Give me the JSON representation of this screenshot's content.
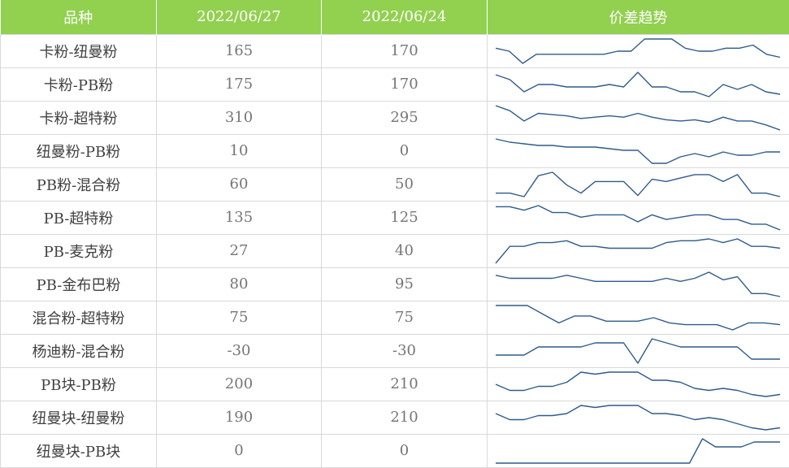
{
  "header": {
    "col_name": "品种",
    "col_date1": "2022/06/27",
    "col_date2": "2022/06/24",
    "col_trend": "价差趋势"
  },
  "rows": [
    {
      "name": "卡粉-纽曼粉",
      "v1": "165",
      "v2": "170"
    },
    {
      "name": "卡粉-PB粉",
      "v1": "175",
      "v2": "170"
    },
    {
      "name": "卡粉-超特粉",
      "v1": "310",
      "v2": "295"
    },
    {
      "name": "纽曼粉-PB粉",
      "v1": "10",
      "v2": "0"
    },
    {
      "name": "PB粉-混合粉",
      "v1": "60",
      "v2": "50"
    },
    {
      "name": "PB-超特粉",
      "v1": "135",
      "v2": "125"
    },
    {
      "name": "PB-麦克粉",
      "v1": "27",
      "v2": "40"
    },
    {
      "name": "PB-金布巴粉",
      "v1": "80",
      "v2": "95"
    },
    {
      "name": "混合粉-超特粉",
      "v1": "75",
      "v2": "75"
    },
    {
      "name": "杨迪粉-混合粉",
      "v1": "-30",
      "v2": "-30"
    },
    {
      "name": "PB块-PB粉",
      "v1": "200",
      "v2": "210"
    },
    {
      "name": "纽曼块-纽曼粉",
      "v1": "190",
      "v2": "210"
    },
    {
      "name": "纽曼块-PB块",
      "v1": "0",
      "v2": "0"
    }
  ],
  "chart_data": {
    "type": "table",
    "columns": [
      "品种",
      "2022/06/27",
      "2022/06/24",
      "价差趋势"
    ],
    "sparkline_color": "#2f5b8a",
    "header_color": "#92d050",
    "sparklines": [
      {
        "name": "卡粉-纽曼粉",
        "values": [
          168,
          167,
          163,
          166,
          166,
          166,
          166,
          166,
          166,
          167,
          167,
          171,
          171,
          171,
          168,
          167,
          167,
          168,
          168,
          169,
          166,
          165
        ]
      },
      {
        "name": "卡粉-PB粉",
        "values": [
          177,
          175,
          170,
          173,
          173,
          172,
          172,
          172,
          173,
          172,
          178,
          172,
          172,
          170,
          170,
          168,
          173,
          171,
          173,
          170,
          169
        ]
      },
      {
        "name": "卡粉-超特粉",
        "values": [
          312,
          308,
          300,
          306,
          305,
          304,
          302,
          303,
          304,
          303,
          306,
          303,
          301,
          300,
          301,
          299,
          303,
          300,
          300,
          297,
          293
        ]
      },
      {
        "name": "纽曼粉-PB粉",
        "values": [
          15,
          13,
          12,
          11,
          11,
          10,
          10,
          10,
          9,
          8,
          8,
          0,
          0,
          4,
          6,
          4,
          7,
          5,
          5,
          7,
          7
        ]
      },
      {
        "name": "PB粉-混合粉",
        "values": [
          50,
          50,
          47,
          65,
          68,
          57,
          50,
          60,
          60,
          60,
          48,
          62,
          60,
          63,
          66,
          66,
          60,
          66,
          50,
          50,
          47
        ]
      },
      {
        "name": "PB-超特粉",
        "values": [
          140,
          140,
          137,
          141,
          135,
          135,
          131,
          133,
          133,
          133,
          127,
          133,
          129,
          131,
          133,
          133,
          129,
          129,
          125,
          125,
          120
        ]
      },
      {
        "name": "PB-麦克粉",
        "values": [
          20,
          29,
          29,
          31,
          31,
          32,
          29,
          29,
          28,
          28,
          28,
          28,
          31,
          32,
          32,
          33,
          31,
          33,
          29,
          29,
          28
        ]
      },
      {
        "name": "PB-金布巴粉",
        "values": [
          88,
          86,
          86,
          86,
          86,
          88,
          86,
          84,
          84,
          84,
          84,
          84,
          86,
          84,
          86,
          90,
          85,
          87,
          76,
          76,
          74
        ]
      },
      {
        "name": "混合粉-超特粉",
        "values": [
          80,
          80,
          80,
          75,
          70,
          74,
          74,
          71,
          71,
          71,
          73,
          70,
          69,
          69,
          69,
          66,
          70,
          70,
          69
        ]
      },
      {
        "name": "杨迪粉-混合粉",
        "values": [
          -28,
          -28,
          -28,
          -26,
          -26,
          -26,
          -26,
          -25,
          -25,
          -25,
          -30,
          -24,
          -25,
          -26,
          -26,
          -26,
          -26,
          -26,
          -29,
          -29,
          -29
        ]
      },
      {
        "name": "PB块-PB粉",
        "values": [
          205,
          202,
          202,
          204,
          204,
          206,
          211,
          210,
          211,
          211,
          211,
          207,
          207,
          206,
          203,
          202,
          203,
          202,
          200,
          199,
          200
        ]
      },
      {
        "name": "纽曼块-纽曼粉",
        "values": [
          200,
          197,
          197,
          199,
          199,
          200,
          204,
          203,
          204,
          204,
          204,
          200,
          200,
          199,
          197,
          198,
          197,
          195,
          193,
          192,
          193
        ]
      },
      {
        "name": "纽曼块-PB块",
        "values": [
          -10,
          -10,
          -10,
          -10,
          -10,
          -10,
          -10,
          -10,
          -10,
          -10,
          -10,
          -10,
          -10,
          -10,
          -10,
          -10,
          5,
          0,
          0,
          0,
          3,
          3,
          3
        ]
      }
    ]
  }
}
